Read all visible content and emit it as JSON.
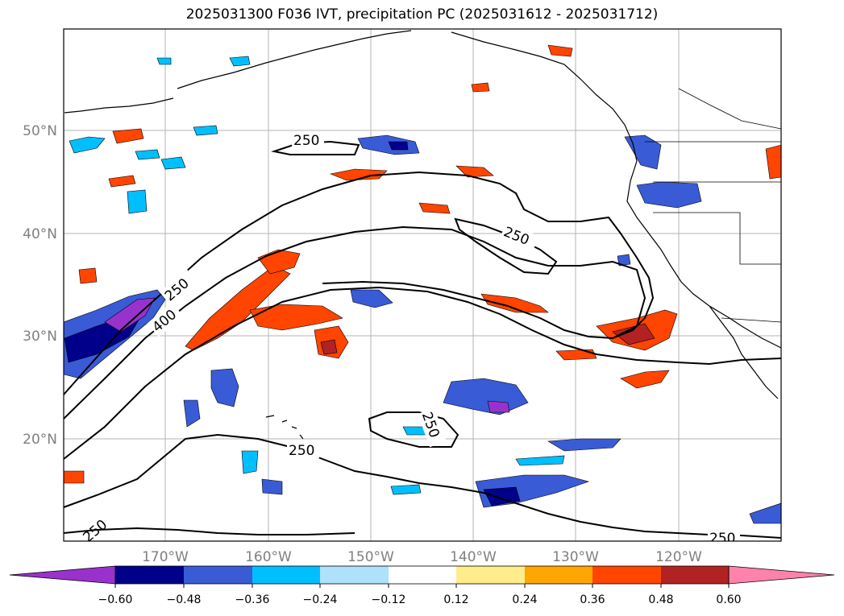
{
  "title": "2025031300 F036 IVT, precipitation PC (2025031612 - 2025031712)",
  "map": {
    "lon_labels": [
      "170°W",
      "160°W",
      "150°W",
      "140°W",
      "130°W",
      "120°W"
    ],
    "lat_labels": [
      "50°N",
      "40°N",
      "30°N",
      "20°N"
    ],
    "contour_labels": [
      "250",
      "250",
      "250",
      "400",
      "250",
      "250",
      "250",
      "250"
    ]
  },
  "colorbar": {
    "labels": [
      "−0.60",
      "−0.48",
      "−0.36",
      "−0.24",
      "−0.12",
      "0.12",
      "0.24",
      "0.36",
      "0.48",
      "0.60"
    ],
    "colors": [
      "#9932CC",
      "#00008B",
      "#3A5BD6",
      "#00BFFF",
      "#ADE2FA",
      "#FFFFFF",
      "#FFEC8B",
      "#FFA500",
      "#FF4500",
      "#B22222",
      "#FF82AB"
    ]
  },
  "legend_colors": {
    "purple": "#9932CC",
    "navy": "#00008B",
    "royal": "#3A5BD6",
    "sky": "#00BFFF",
    "pale": "#ADE2FA",
    "yellow": "#FFEC8B",
    "orange": "#FFA500",
    "red": "#FF4500",
    "darkred": "#B22222",
    "pink": "#FF82AB"
  }
}
